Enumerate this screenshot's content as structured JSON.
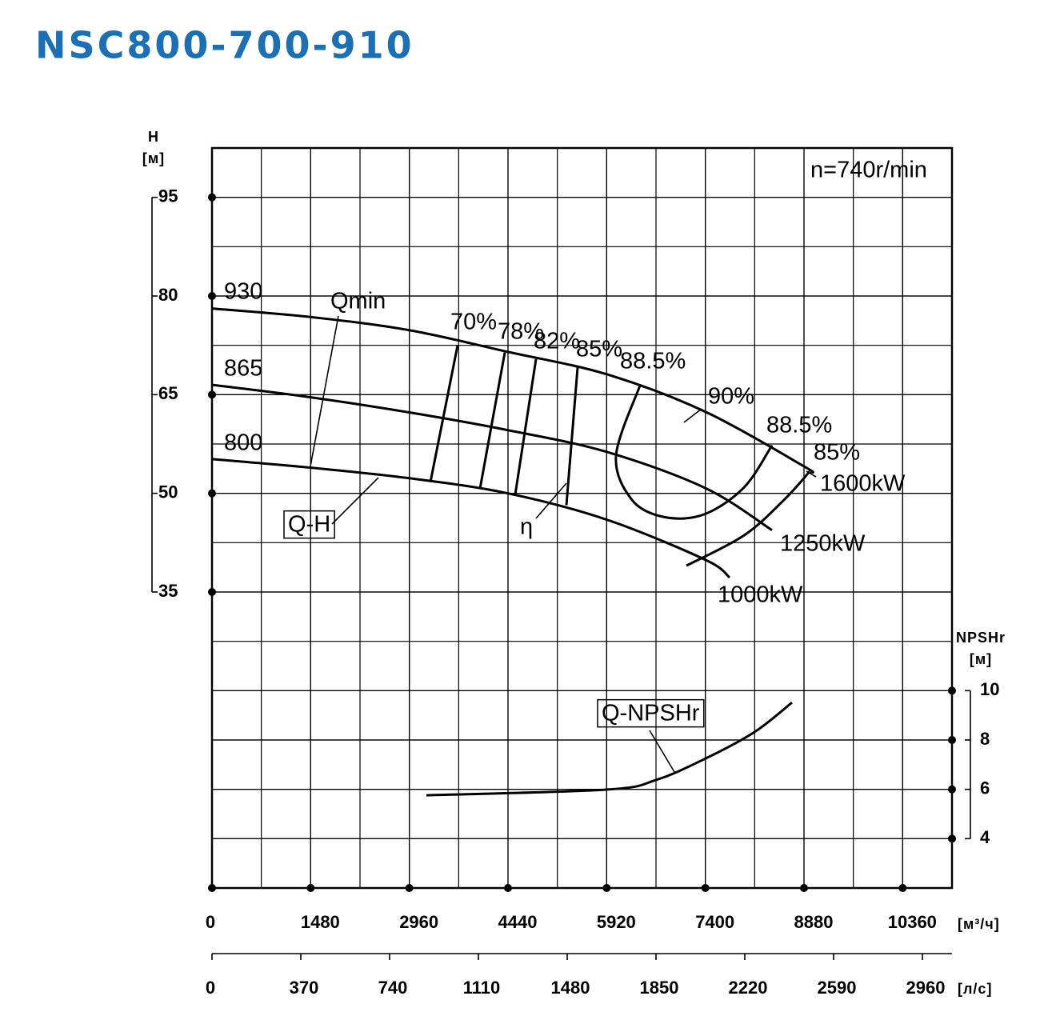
{
  "chart_data": {
    "type": "line",
    "title": "NSC800-700-910",
    "ylabel": "H",
    "ylabel_unit": "[м]",
    "y2label": "NPSHr",
    "y2label_unit": "[м]",
    "xlabel_unit": "[м³/ч]",
    "x2label_unit": "[л/с]",
    "speed": "n=740r/min",
    "xlim": [
      0,
      11100
    ],
    "xticks": [
      0,
      1480,
      2960,
      4440,
      5920,
      7400,
      8880,
      10360
    ],
    "x2lim": [
      0,
      3083.33
    ],
    "x2ticks": [
      0,
      370,
      740,
      1110,
      1480,
      1850,
      2220,
      2590,
      2960
    ],
    "ylim": [
      -10,
      102.5
    ],
    "yticks": [
      35,
      50,
      65,
      80,
      95
    ],
    "y2lim": [
      2,
      32
    ],
    "y2ticks": [
      4,
      6,
      8,
      10
    ],
    "grid": true,
    "series": [
      {
        "name": "930",
        "color": "#000000",
        "x": [
          0,
          1480,
          2960,
          4440,
          5920,
          7400,
          8880,
          8964
        ],
        "values": [
          78.1,
          76.8,
          74.8,
          71.5,
          68.1,
          62.4,
          54.1,
          53.3
        ]
      },
      {
        "name": "865",
        "color": "#000000",
        "x": [
          0,
          1480,
          2960,
          4440,
          5920,
          7400,
          8400
        ],
        "values": [
          66.5,
          64.6,
          62.3,
          59.6,
          56.3,
          50.8,
          44.4
        ]
      },
      {
        "name": "800",
        "color": "#000000",
        "x": [
          0,
          1480,
          2960,
          4440,
          5920,
          7400,
          7764
        ],
        "values": [
          55.2,
          53.9,
          52.3,
          50.0,
          46.0,
          39.9,
          37.2
        ]
      },
      {
        "name": "70%",
        "color": "#000000",
        "x": [
          3684,
          3276
        ],
        "values": [
          72.5,
          51.7
        ]
      },
      {
        "name": "78%",
        "color": "#000000",
        "x": [
          4392,
          4020
        ],
        "values": [
          71.4,
          50.7
        ]
      },
      {
        "name": "82%",
        "color": "#000000",
        "x": [
          4860,
          4548
        ],
        "values": [
          70.4,
          49.8
        ]
      },
      {
        "name": "85%",
        "color": "#000000",
        "x": [
          5484,
          5316
        ],
        "values": [
          69.1,
          48.2
        ]
      },
      {
        "name": "88.5%",
        "color": "#000000",
        "x": [
          6420,
          6060,
          6300,
          6780,
          7380,
          7980,
          8400
        ],
        "values": [
          66.4,
          55.7,
          49.0,
          46.4,
          46.8,
          50.9,
          57.3
        ]
      },
      {
        "name": "85%",
        "color": "#000000",
        "x": [
          8964,
          8580,
          7980,
          7116
        ],
        "values": [
          53.3,
          49.0,
          43.6,
          39.0
        ]
      },
      {
        "name": "Q-NPSHr",
        "color": "#000000",
        "axis": "y2",
        "x": [
          3216,
          5916,
          6660,
          7404,
          8136,
          8700
        ],
        "values": [
          5.76,
          5.99,
          6.38,
          7.25,
          8.32,
          9.52
        ]
      }
    ],
    "annotations": [
      {
        "text": "Qmin"
      },
      {
        "text": "Q-H"
      },
      {
        "text": "η"
      },
      {
        "text": "90%"
      },
      {
        "text": "1600kW"
      },
      {
        "text": "1250kW"
      },
      {
        "text": "1000kW"
      }
    ]
  }
}
